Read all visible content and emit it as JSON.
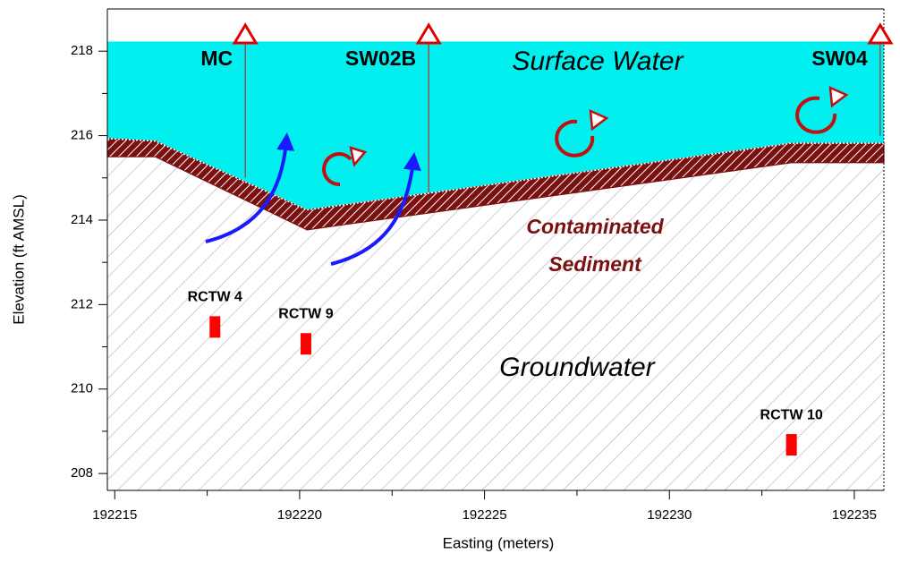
{
  "chart_data": {
    "type": "cross-section",
    "x_label": "Easting (meters)",
    "y_label": "Elevation (ft AMSL)",
    "xlim": [
      192214.8,
      192235.8
    ],
    "ylim": [
      207.6,
      219.0
    ],
    "xticks": [
      192215,
      192220,
      192225,
      192230,
      192235
    ],
    "yticks": [
      208,
      210,
      212,
      214,
      216,
      218
    ],
    "water_surface": 218.23,
    "sediment_top": {
      "x": [
        192214.8,
        192216.1,
        192220.2,
        192233.3,
        192235.8
      ],
      "y": [
        215.93,
        215.87,
        214.24,
        215.82,
        215.82
      ]
    },
    "sediment_bottom": {
      "x": [
        192214.8,
        192216.1,
        192220.2,
        192233.3,
        192235.8
      ],
      "y": [
        215.5,
        215.5,
        213.77,
        215.36,
        215.36
      ]
    },
    "stations": [
      {
        "name": "MC",
        "x": 192218.53,
        "bottom": 215.0
      },
      {
        "name": "SW02B",
        "x": 192223.49,
        "bottom": 214.66
      },
      {
        "name": "SW04",
        "x": 192235.7,
        "bottom": 216.0
      }
    ],
    "wells": [
      {
        "name": "RCTW 4",
        "x": 192217.71,
        "y": 211.47
      },
      {
        "name": "RCTW 9",
        "x": 192220.17,
        "y": 211.07
      },
      {
        "name": "RCTW 10",
        "x": 192233.3,
        "y": 208.68
      }
    ],
    "annotations": [
      "Surface Water",
      "Contaminated",
      "Sediment",
      "Groundwater"
    ]
  }
}
